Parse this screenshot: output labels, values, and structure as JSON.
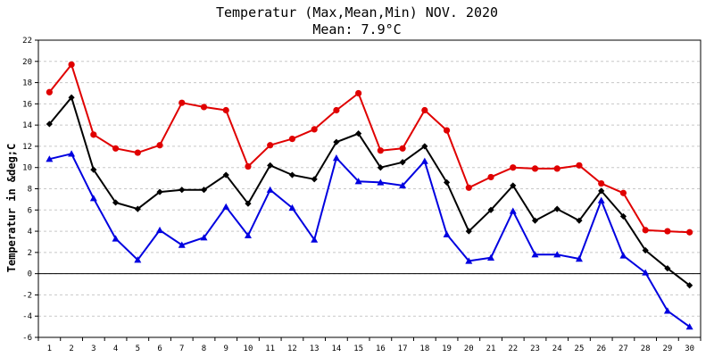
{
  "chart_data": {
    "type": "line",
    "title": "Temperatur (Max,Mean,Min) NOV. 2020",
    "subtitle": "Mean: 7.9°C",
    "ylabel": "Temperatur in &deg;C",
    "xlabel": "",
    "categories": [
      "1",
      "2",
      "3",
      "4",
      "5",
      "6",
      "7",
      "8",
      "9",
      "10",
      "11",
      "12",
      "13",
      "14",
      "15",
      "16",
      "17",
      "18",
      "19",
      "20",
      "21",
      "22",
      "23",
      "24",
      "25",
      "26",
      "27",
      "28",
      "29",
      "30"
    ],
    "ylim": [
      -6,
      22
    ],
    "yticks": [
      "-6",
      "-4",
      "-2",
      "0",
      "2",
      "4",
      "6",
      "8",
      "10",
      "12",
      "14",
      "16",
      "18",
      "20",
      "22"
    ],
    "grid": true,
    "zero_line": true,
    "series": [
      {
        "name": "Max",
        "color": "#e00000",
        "marker": "circle",
        "values": [
          17.1,
          19.7,
          13.1,
          11.8,
          11.4,
          12.1,
          16.1,
          15.7,
          15.4,
          10.1,
          12.1,
          12.7,
          13.6,
          15.4,
          17.0,
          11.6,
          11.8,
          15.4,
          13.5,
          8.1,
          9.1,
          10.0,
          9.9,
          9.9,
          10.2,
          8.5,
          7.6,
          4.1,
          4.0,
          3.9
        ]
      },
      {
        "name": "Mean",
        "color": "#000000",
        "marker": "diamond",
        "values": [
          14.1,
          16.6,
          9.8,
          6.7,
          6.1,
          7.7,
          7.9,
          7.9,
          9.3,
          6.6,
          10.2,
          9.3,
          8.9,
          12.4,
          13.2,
          10.0,
          10.5,
          12.0,
          8.6,
          4.0,
          6.0,
          8.3,
          5.0,
          6.1,
          5.0,
          7.8,
          5.4,
          2.2,
          0.5,
          -1.1
        ]
      },
      {
        "name": "Min",
        "color": "#0000e0",
        "marker": "triangle",
        "values": [
          10.8,
          11.3,
          7.1,
          3.3,
          1.3,
          4.1,
          2.7,
          3.4,
          6.3,
          3.6,
          7.9,
          6.2,
          3.2,
          10.9,
          8.7,
          8.6,
          8.3,
          10.6,
          3.7,
          1.2,
          1.5,
          5.9,
          1.8,
          1.8,
          1.4,
          6.9,
          1.7,
          0.1,
          -3.5,
          -5.0
        ]
      }
    ]
  }
}
